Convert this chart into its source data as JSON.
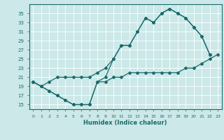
{
  "xlabel": "Humidex (Indice chaleur)",
  "background_color": "#cce8e8",
  "grid_color": "#ffffff",
  "line_color": "#1a6b6b",
  "xlim": [
    -0.5,
    23.5
  ],
  "ylim": [
    14,
    37
  ],
  "xticks": [
    0,
    1,
    2,
    3,
    4,
    5,
    6,
    7,
    8,
    9,
    10,
    11,
    12,
    13,
    14,
    15,
    16,
    17,
    18,
    19,
    20,
    21,
    22,
    23
  ],
  "yticks": [
    15,
    17,
    19,
    21,
    23,
    25,
    27,
    29,
    31,
    33,
    35
  ],
  "line1_x": [
    0,
    1,
    2,
    3,
    4,
    5,
    6,
    7,
    8,
    9,
    10,
    11,
    12,
    13,
    14,
    15,
    16,
    17,
    18,
    19,
    20,
    21,
    22,
    23
  ],
  "line1_y": [
    20,
    19,
    18,
    17,
    16,
    15,
    15,
    15,
    20,
    20,
    21,
    21,
    22,
    22,
    22,
    22,
    22,
    22,
    22,
    23,
    23,
    24,
    25,
    26
  ],
  "line2_x": [
    0,
    1,
    2,
    3,
    4,
    5,
    6,
    7,
    8,
    9,
    10,
    11,
    12,
    13,
    14,
    15,
    16,
    17,
    18,
    19,
    20,
    21,
    22
  ],
  "line2_y": [
    20,
    19,
    18,
    17,
    16,
    15,
    15,
    15,
    20,
    21,
    25,
    28,
    28,
    31,
    34,
    33,
    35,
    36,
    35,
    34,
    32,
    30,
    26
  ],
  "line3_x": [
    0,
    1,
    2,
    3,
    4,
    5,
    6,
    7,
    8,
    9,
    10,
    11,
    12,
    13,
    14,
    15,
    16,
    17,
    18,
    19,
    20,
    21,
    22
  ],
  "line3_y": [
    20,
    19,
    20,
    21,
    21,
    21,
    21,
    21,
    22,
    23,
    25,
    28,
    28,
    31,
    34,
    33,
    35,
    36,
    35,
    34,
    32,
    30,
    26
  ]
}
